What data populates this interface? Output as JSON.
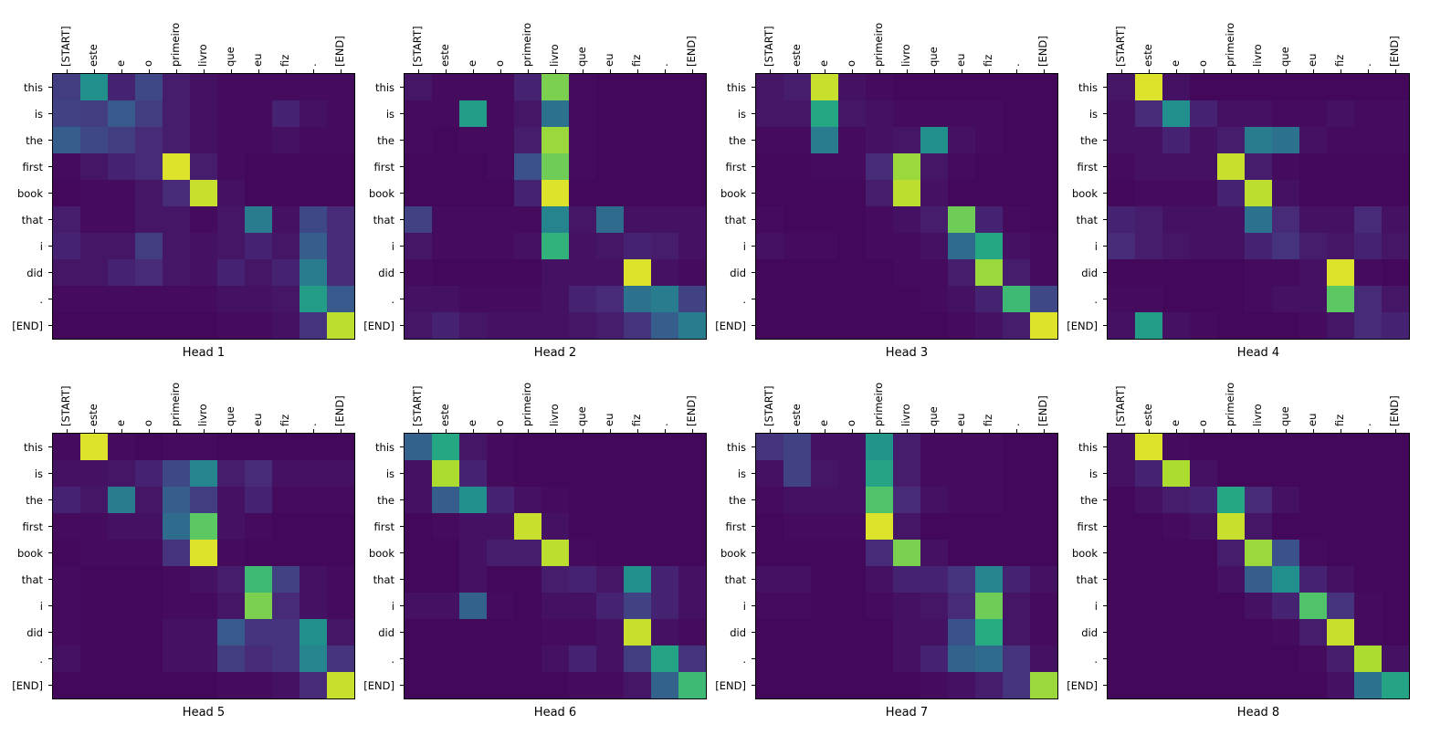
{
  "figure": {
    "background": "#ffffff",
    "text_color": "#000000",
    "layout": {
      "rows": 2,
      "cols": 4
    },
    "colormap": "viridis",
    "colormap_stops": [
      "#440154",
      "#472c7a",
      "#3b518b",
      "#2c718e",
      "#21908d",
      "#27ad81",
      "#5cc863",
      "#aadc32",
      "#fde725"
    ]
  },
  "chart_data": {
    "type": "heatmap",
    "description": "Grid of 8 attention-head heatmaps; rows are output tokens, columns are input tokens; values estimated 0-1 on viridis colormap",
    "x": [
      "[START]",
      "este",
      "e",
      "o",
      "primeiro",
      "livro",
      "que",
      "eu",
      "fiz",
      ".",
      "[END]"
    ],
    "y": [
      "this",
      "is",
      "the",
      "first",
      "book",
      "that",
      "i",
      "did",
      ".",
      "[END]"
    ],
    "value_range": [
      0,
      1
    ],
    "heads": [
      {
        "title": "Head 1",
        "values": [
          [
            0.18,
            0.5,
            0.1,
            0.22,
            0.08,
            0.05,
            0.03,
            0.03,
            0.03,
            0.03,
            0.03
          ],
          [
            0.2,
            0.18,
            0.28,
            0.18,
            0.08,
            0.05,
            0.03,
            0.03,
            0.1,
            0.05,
            0.03
          ],
          [
            0.3,
            0.22,
            0.18,
            0.12,
            0.08,
            0.05,
            0.03,
            0.03,
            0.05,
            0.03,
            0.03
          ],
          [
            0.03,
            0.06,
            0.1,
            0.12,
            0.95,
            0.08,
            0.03,
            0.02,
            0.02,
            0.02,
            0.02
          ],
          [
            0.02,
            0.03,
            0.03,
            0.06,
            0.12,
            0.92,
            0.05,
            0.02,
            0.02,
            0.02,
            0.02
          ],
          [
            0.08,
            0.03,
            0.03,
            0.06,
            0.06,
            0.03,
            0.06,
            0.42,
            0.05,
            0.22,
            0.12
          ],
          [
            0.1,
            0.06,
            0.06,
            0.18,
            0.06,
            0.05,
            0.06,
            0.1,
            0.06,
            0.3,
            0.12
          ],
          [
            0.06,
            0.06,
            0.1,
            0.12,
            0.06,
            0.05,
            0.1,
            0.06,
            0.1,
            0.42,
            0.12
          ],
          [
            0.03,
            0.03,
            0.03,
            0.03,
            0.03,
            0.03,
            0.05,
            0.05,
            0.06,
            0.55,
            0.28
          ],
          [
            0.02,
            0.02,
            0.02,
            0.02,
            0.02,
            0.02,
            0.03,
            0.03,
            0.05,
            0.15,
            0.9
          ]
        ]
      },
      {
        "title": "Head 2",
        "values": [
          [
            0.06,
            0.03,
            0.03,
            0.03,
            0.1,
            0.8,
            0.03,
            0.02,
            0.02,
            0.02,
            0.02
          ],
          [
            0.03,
            0.03,
            0.55,
            0.03,
            0.06,
            0.38,
            0.03,
            0.02,
            0.02,
            0.02,
            0.02
          ],
          [
            0.03,
            0.02,
            0.03,
            0.03,
            0.08,
            0.85,
            0.03,
            0.02,
            0.02,
            0.02,
            0.02
          ],
          [
            0.02,
            0.02,
            0.02,
            0.03,
            0.25,
            0.78,
            0.03,
            0.02,
            0.02,
            0.02,
            0.02
          ],
          [
            0.02,
            0.02,
            0.02,
            0.02,
            0.1,
            0.95,
            0.02,
            0.02,
            0.02,
            0.02,
            0.02
          ],
          [
            0.2,
            0.03,
            0.03,
            0.03,
            0.03,
            0.45,
            0.06,
            0.35,
            0.05,
            0.05,
            0.05
          ],
          [
            0.06,
            0.03,
            0.03,
            0.03,
            0.05,
            0.65,
            0.05,
            0.06,
            0.1,
            0.08,
            0.05
          ],
          [
            0.03,
            0.02,
            0.02,
            0.02,
            0.02,
            0.05,
            0.05,
            0.05,
            0.95,
            0.05,
            0.03
          ],
          [
            0.05,
            0.05,
            0.03,
            0.03,
            0.03,
            0.05,
            0.1,
            0.12,
            0.38,
            0.42,
            0.2
          ],
          [
            0.06,
            0.1,
            0.06,
            0.05,
            0.05,
            0.05,
            0.06,
            0.08,
            0.15,
            0.3,
            0.42
          ]
        ]
      },
      {
        "title": "Head 3",
        "values": [
          [
            0.06,
            0.08,
            0.92,
            0.05,
            0.03,
            0.02,
            0.02,
            0.02,
            0.02,
            0.02,
            0.02
          ],
          [
            0.06,
            0.06,
            0.6,
            0.06,
            0.05,
            0.03,
            0.03,
            0.03,
            0.03,
            0.02,
            0.02
          ],
          [
            0.03,
            0.03,
            0.42,
            0.03,
            0.05,
            0.06,
            0.5,
            0.05,
            0.03,
            0.02,
            0.02
          ],
          [
            0.02,
            0.02,
            0.03,
            0.03,
            0.12,
            0.85,
            0.06,
            0.03,
            0.02,
            0.02,
            0.02
          ],
          [
            0.02,
            0.02,
            0.02,
            0.02,
            0.08,
            0.9,
            0.05,
            0.02,
            0.02,
            0.02,
            0.02
          ],
          [
            0.03,
            0.02,
            0.02,
            0.02,
            0.03,
            0.05,
            0.08,
            0.78,
            0.1,
            0.03,
            0.02
          ],
          [
            0.05,
            0.03,
            0.03,
            0.02,
            0.03,
            0.03,
            0.05,
            0.35,
            0.6,
            0.05,
            0.03
          ],
          [
            0.02,
            0.02,
            0.02,
            0.02,
            0.02,
            0.03,
            0.03,
            0.08,
            0.85,
            0.08,
            0.03
          ],
          [
            0.02,
            0.02,
            0.02,
            0.02,
            0.02,
            0.02,
            0.03,
            0.05,
            0.1,
            0.68,
            0.22
          ],
          [
            0.02,
            0.02,
            0.02,
            0.02,
            0.02,
            0.02,
            0.02,
            0.03,
            0.05,
            0.08,
            0.95
          ]
        ]
      },
      {
        "title": "Head 4",
        "values": [
          [
            0.06,
            0.95,
            0.05,
            0.02,
            0.02,
            0.02,
            0.02,
            0.02,
            0.02,
            0.02,
            0.02
          ],
          [
            0.05,
            0.12,
            0.5,
            0.1,
            0.05,
            0.05,
            0.03,
            0.03,
            0.05,
            0.03,
            0.03
          ],
          [
            0.05,
            0.05,
            0.1,
            0.05,
            0.08,
            0.42,
            0.38,
            0.05,
            0.03,
            0.03,
            0.03
          ],
          [
            0.03,
            0.05,
            0.05,
            0.05,
            0.92,
            0.08,
            0.03,
            0.02,
            0.02,
            0.02,
            0.02
          ],
          [
            0.02,
            0.03,
            0.03,
            0.03,
            0.1,
            0.9,
            0.05,
            0.02,
            0.02,
            0.02,
            0.02
          ],
          [
            0.1,
            0.08,
            0.05,
            0.05,
            0.05,
            0.38,
            0.12,
            0.05,
            0.05,
            0.12,
            0.05
          ],
          [
            0.12,
            0.08,
            0.06,
            0.05,
            0.05,
            0.1,
            0.15,
            0.08,
            0.06,
            0.1,
            0.06
          ],
          [
            0.02,
            0.02,
            0.02,
            0.02,
            0.02,
            0.03,
            0.03,
            0.05,
            0.95,
            0.03,
            0.02
          ],
          [
            0.03,
            0.03,
            0.02,
            0.02,
            0.02,
            0.03,
            0.05,
            0.05,
            0.75,
            0.12,
            0.06
          ],
          [
            0.05,
            0.55,
            0.05,
            0.03,
            0.02,
            0.02,
            0.02,
            0.03,
            0.06,
            0.12,
            0.1
          ]
        ]
      },
      {
        "title": "Head 5",
        "values": [
          [
            0.03,
            0.95,
            0.03,
            0.02,
            0.03,
            0.03,
            0.02,
            0.02,
            0.02,
            0.02,
            0.02
          ],
          [
            0.05,
            0.05,
            0.06,
            0.1,
            0.22,
            0.45,
            0.08,
            0.12,
            0.05,
            0.05,
            0.05
          ],
          [
            0.1,
            0.06,
            0.42,
            0.06,
            0.3,
            0.18,
            0.05,
            0.1,
            0.03,
            0.03,
            0.03
          ],
          [
            0.03,
            0.03,
            0.05,
            0.05,
            0.35,
            0.75,
            0.05,
            0.03,
            0.02,
            0.02,
            0.02
          ],
          [
            0.02,
            0.03,
            0.03,
            0.03,
            0.15,
            0.95,
            0.03,
            0.02,
            0.02,
            0.02,
            0.02
          ],
          [
            0.03,
            0.02,
            0.02,
            0.02,
            0.03,
            0.05,
            0.08,
            0.68,
            0.2,
            0.05,
            0.03
          ],
          [
            0.03,
            0.02,
            0.02,
            0.02,
            0.03,
            0.03,
            0.06,
            0.8,
            0.12,
            0.05,
            0.03
          ],
          [
            0.03,
            0.02,
            0.02,
            0.02,
            0.05,
            0.05,
            0.28,
            0.15,
            0.15,
            0.5,
            0.06
          ],
          [
            0.05,
            0.02,
            0.02,
            0.02,
            0.05,
            0.05,
            0.18,
            0.12,
            0.15,
            0.45,
            0.15
          ],
          [
            0.02,
            0.02,
            0.02,
            0.02,
            0.02,
            0.02,
            0.03,
            0.03,
            0.05,
            0.12,
            0.92
          ]
        ]
      },
      {
        "title": "Head 6",
        "values": [
          [
            0.32,
            0.6,
            0.06,
            0.03,
            0.02,
            0.02,
            0.02,
            0.02,
            0.02,
            0.02,
            0.02
          ],
          [
            0.05,
            0.88,
            0.1,
            0.03,
            0.02,
            0.02,
            0.02,
            0.02,
            0.02,
            0.02,
            0.02
          ],
          [
            0.05,
            0.3,
            0.5,
            0.1,
            0.05,
            0.03,
            0.02,
            0.02,
            0.02,
            0.02,
            0.02
          ],
          [
            0.02,
            0.03,
            0.05,
            0.05,
            0.92,
            0.05,
            0.02,
            0.02,
            0.02,
            0.02,
            0.02
          ],
          [
            0.02,
            0.02,
            0.05,
            0.08,
            0.08,
            0.9,
            0.03,
            0.02,
            0.02,
            0.02,
            0.02
          ],
          [
            0.02,
            0.02,
            0.05,
            0.02,
            0.02,
            0.08,
            0.1,
            0.06,
            0.5,
            0.1,
            0.05
          ],
          [
            0.05,
            0.05,
            0.32,
            0.03,
            0.02,
            0.05,
            0.05,
            0.1,
            0.2,
            0.1,
            0.05
          ],
          [
            0.02,
            0.02,
            0.02,
            0.02,
            0.02,
            0.03,
            0.03,
            0.05,
            0.92,
            0.05,
            0.03
          ],
          [
            0.02,
            0.02,
            0.02,
            0.02,
            0.02,
            0.05,
            0.1,
            0.05,
            0.18,
            0.58,
            0.15
          ],
          [
            0.02,
            0.02,
            0.02,
            0.02,
            0.02,
            0.02,
            0.03,
            0.03,
            0.06,
            0.32,
            0.68
          ]
        ]
      },
      {
        "title": "Head 7",
        "values": [
          [
            0.15,
            0.2,
            0.05,
            0.05,
            0.52,
            0.08,
            0.03,
            0.03,
            0.03,
            0.02,
            0.02
          ],
          [
            0.05,
            0.2,
            0.06,
            0.05,
            0.58,
            0.08,
            0.03,
            0.03,
            0.03,
            0.02,
            0.02
          ],
          [
            0.03,
            0.05,
            0.05,
            0.05,
            0.72,
            0.12,
            0.05,
            0.03,
            0.03,
            0.02,
            0.02
          ],
          [
            0.02,
            0.03,
            0.03,
            0.03,
            0.95,
            0.06,
            0.02,
            0.02,
            0.02,
            0.02,
            0.02
          ],
          [
            0.02,
            0.02,
            0.02,
            0.02,
            0.12,
            0.8,
            0.05,
            0.02,
            0.02,
            0.02,
            0.02
          ],
          [
            0.05,
            0.05,
            0.02,
            0.02,
            0.05,
            0.1,
            0.1,
            0.15,
            0.45,
            0.1,
            0.05
          ],
          [
            0.03,
            0.03,
            0.02,
            0.02,
            0.03,
            0.05,
            0.06,
            0.12,
            0.78,
            0.06,
            0.03
          ],
          [
            0.02,
            0.02,
            0.02,
            0.02,
            0.02,
            0.05,
            0.05,
            0.25,
            0.62,
            0.06,
            0.03
          ],
          [
            0.02,
            0.02,
            0.02,
            0.02,
            0.02,
            0.05,
            0.1,
            0.32,
            0.35,
            0.15,
            0.05
          ],
          [
            0.02,
            0.02,
            0.02,
            0.02,
            0.02,
            0.02,
            0.03,
            0.05,
            0.08,
            0.15,
            0.85
          ]
        ]
      },
      {
        "title": "Head 8",
        "values": [
          [
            0.05,
            0.95,
            0.03,
            0.02,
            0.02,
            0.02,
            0.02,
            0.02,
            0.02,
            0.02,
            0.02
          ],
          [
            0.05,
            0.1,
            0.88,
            0.05,
            0.02,
            0.02,
            0.02,
            0.02,
            0.02,
            0.02,
            0.02
          ],
          [
            0.02,
            0.05,
            0.08,
            0.1,
            0.6,
            0.12,
            0.05,
            0.02,
            0.02,
            0.02,
            0.02
          ],
          [
            0.02,
            0.02,
            0.03,
            0.05,
            0.92,
            0.06,
            0.02,
            0.02,
            0.02,
            0.02,
            0.02
          ],
          [
            0.02,
            0.02,
            0.02,
            0.02,
            0.08,
            0.85,
            0.25,
            0.03,
            0.02,
            0.02,
            0.02
          ],
          [
            0.02,
            0.02,
            0.02,
            0.02,
            0.05,
            0.3,
            0.5,
            0.1,
            0.05,
            0.02,
            0.02
          ],
          [
            0.02,
            0.02,
            0.02,
            0.02,
            0.02,
            0.05,
            0.1,
            0.72,
            0.15,
            0.03,
            0.02
          ],
          [
            0.02,
            0.02,
            0.02,
            0.02,
            0.02,
            0.02,
            0.03,
            0.08,
            0.92,
            0.03,
            0.02
          ],
          [
            0.02,
            0.02,
            0.02,
            0.02,
            0.02,
            0.02,
            0.02,
            0.03,
            0.08,
            0.88,
            0.05
          ],
          [
            0.02,
            0.02,
            0.02,
            0.02,
            0.02,
            0.02,
            0.02,
            0.02,
            0.05,
            0.38,
            0.58
          ]
        ]
      }
    ]
  }
}
